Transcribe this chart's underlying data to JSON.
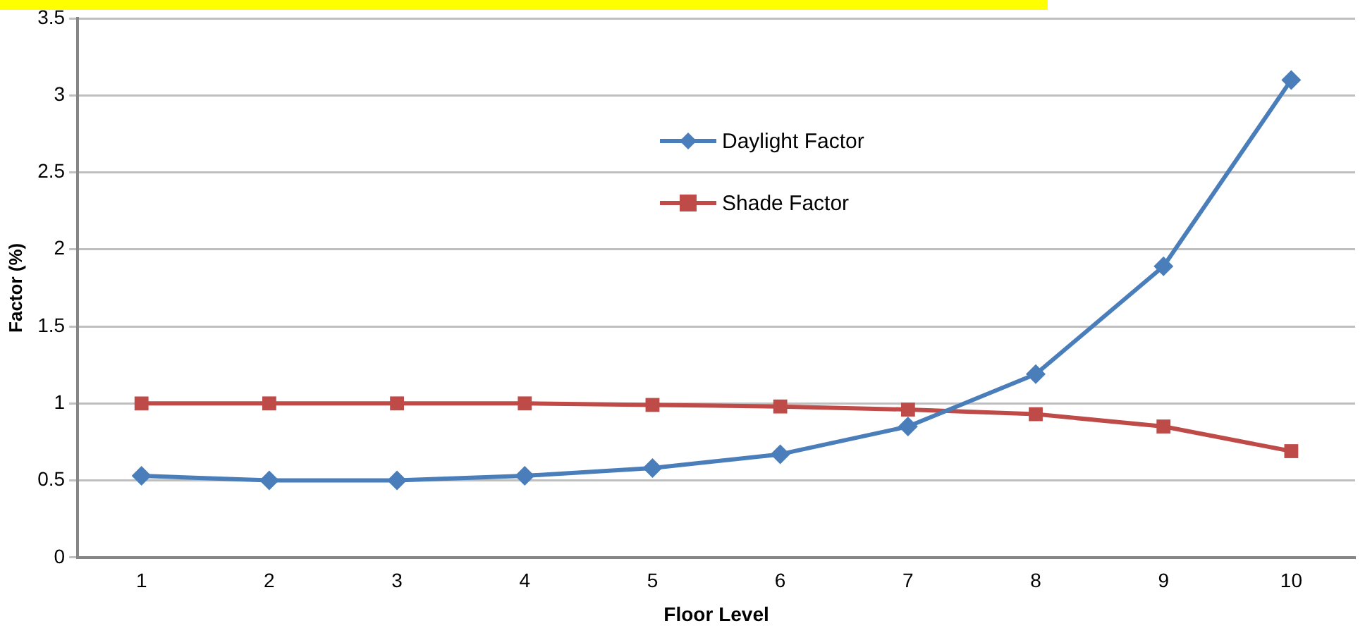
{
  "chart_data": {
    "type": "line",
    "xlabel": "Floor Level",
    "ylabel": "Factor (%)",
    "categories": [
      "1",
      "2",
      "3",
      "4",
      "5",
      "6",
      "7",
      "8",
      "9",
      "10"
    ],
    "series": [
      {
        "name": "Daylight Factor",
        "color": "#4a7ebb",
        "marker": "diamond",
        "values": [
          0.53,
          0.5,
          0.5,
          0.53,
          0.58,
          0.67,
          0.85,
          1.19,
          1.89,
          3.1
        ]
      },
      {
        "name": "Shade Factor",
        "color": "#be4b48",
        "marker": "square",
        "values": [
          1,
          1,
          1,
          1,
          0.99,
          0.98,
          0.96,
          0.93,
          0.85,
          0.69
        ]
      }
    ],
    "ylim": [
      0,
      3.5
    ],
    "yticks": [
      0,
      0.5,
      1,
      1.5,
      2,
      2.5,
      3,
      3.5
    ],
    "grid": "y",
    "legend": "top",
    "line_style": "solid"
  }
}
